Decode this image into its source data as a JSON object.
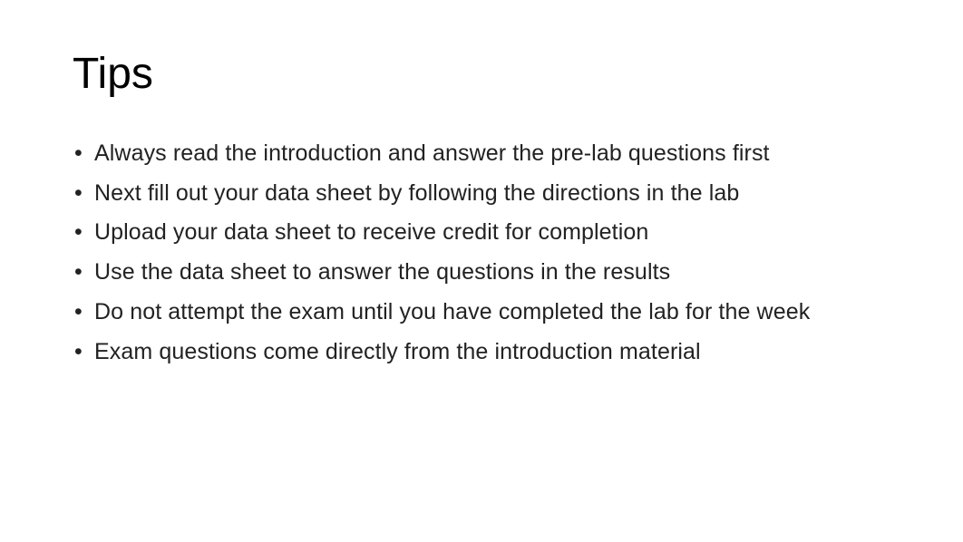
{
  "slide": {
    "title": "Tips",
    "title_fontsize": 48,
    "title_color": "#000000",
    "background_color": "#ffffff",
    "body_fontsize": 25,
    "body_color": "#222222",
    "bullet_glyph": "•",
    "items": [
      "Always read the introduction and answer the pre-lab questions first",
      "Next fill out your data sheet by following the directions in the lab",
      "Upload your data sheet to receive credit for completion",
      "Use the data sheet to answer the questions in the results",
      "Do not attempt the exam until you have completed the lab for the week",
      "Exam questions come directly from the introduction material"
    ]
  }
}
